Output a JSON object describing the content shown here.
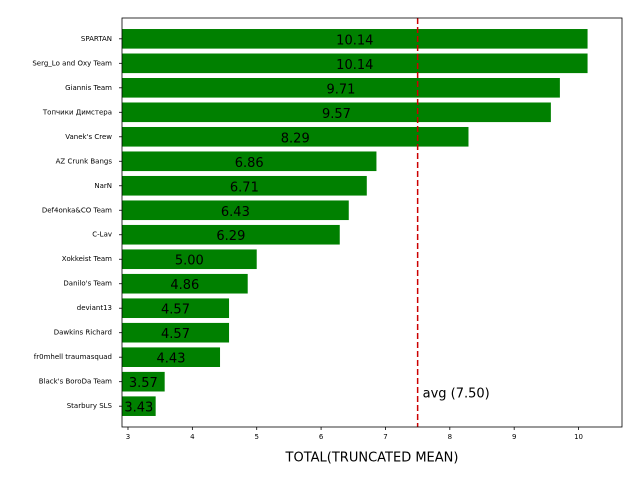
{
  "chart_data": {
    "type": "barh",
    "xlabel": "TOTAL(TRUNCATED MEAN)",
    "categories": [
      "SPARTAN",
      "Serg_Lo and Oxy Team",
      "Giannis Team",
      "Топчики Димстера",
      "Vanek's Crew",
      "AZ Crunk Bangs",
      "NarN",
      "Def4onka&CO Team",
      "C-Lav",
      "Xokkeist Team",
      "Danilo's Team",
      "deviant13",
      "Dawkins Richard",
      "fr0mhell traumasquad",
      "Black's BoroDa Team",
      "Starbury SLS"
    ],
    "values": [
      10.14,
      10.14,
      9.71,
      9.57,
      8.29,
      6.86,
      6.71,
      6.43,
      6.29,
      5.0,
      4.86,
      4.57,
      4.57,
      4.43,
      3.57,
      3.43
    ],
    "value_labels": [
      "10.14",
      "10.14",
      "9.71",
      "9.57",
      "8.29",
      "6.86",
      "6.71",
      "6.43",
      "6.29",
      "5.00",
      "4.86",
      "4.57",
      "4.57",
      "4.43",
      "3.57",
      "3.43"
    ],
    "color": "#008000",
    "xlim": [
      2.907,
      10.675
    ],
    "xticks": [
      3,
      4,
      5,
      6,
      7,
      8,
      9,
      10
    ],
    "avg": 7.5,
    "avg_label": "avg (7.50)",
    "avg_color": "#cc0000"
  }
}
